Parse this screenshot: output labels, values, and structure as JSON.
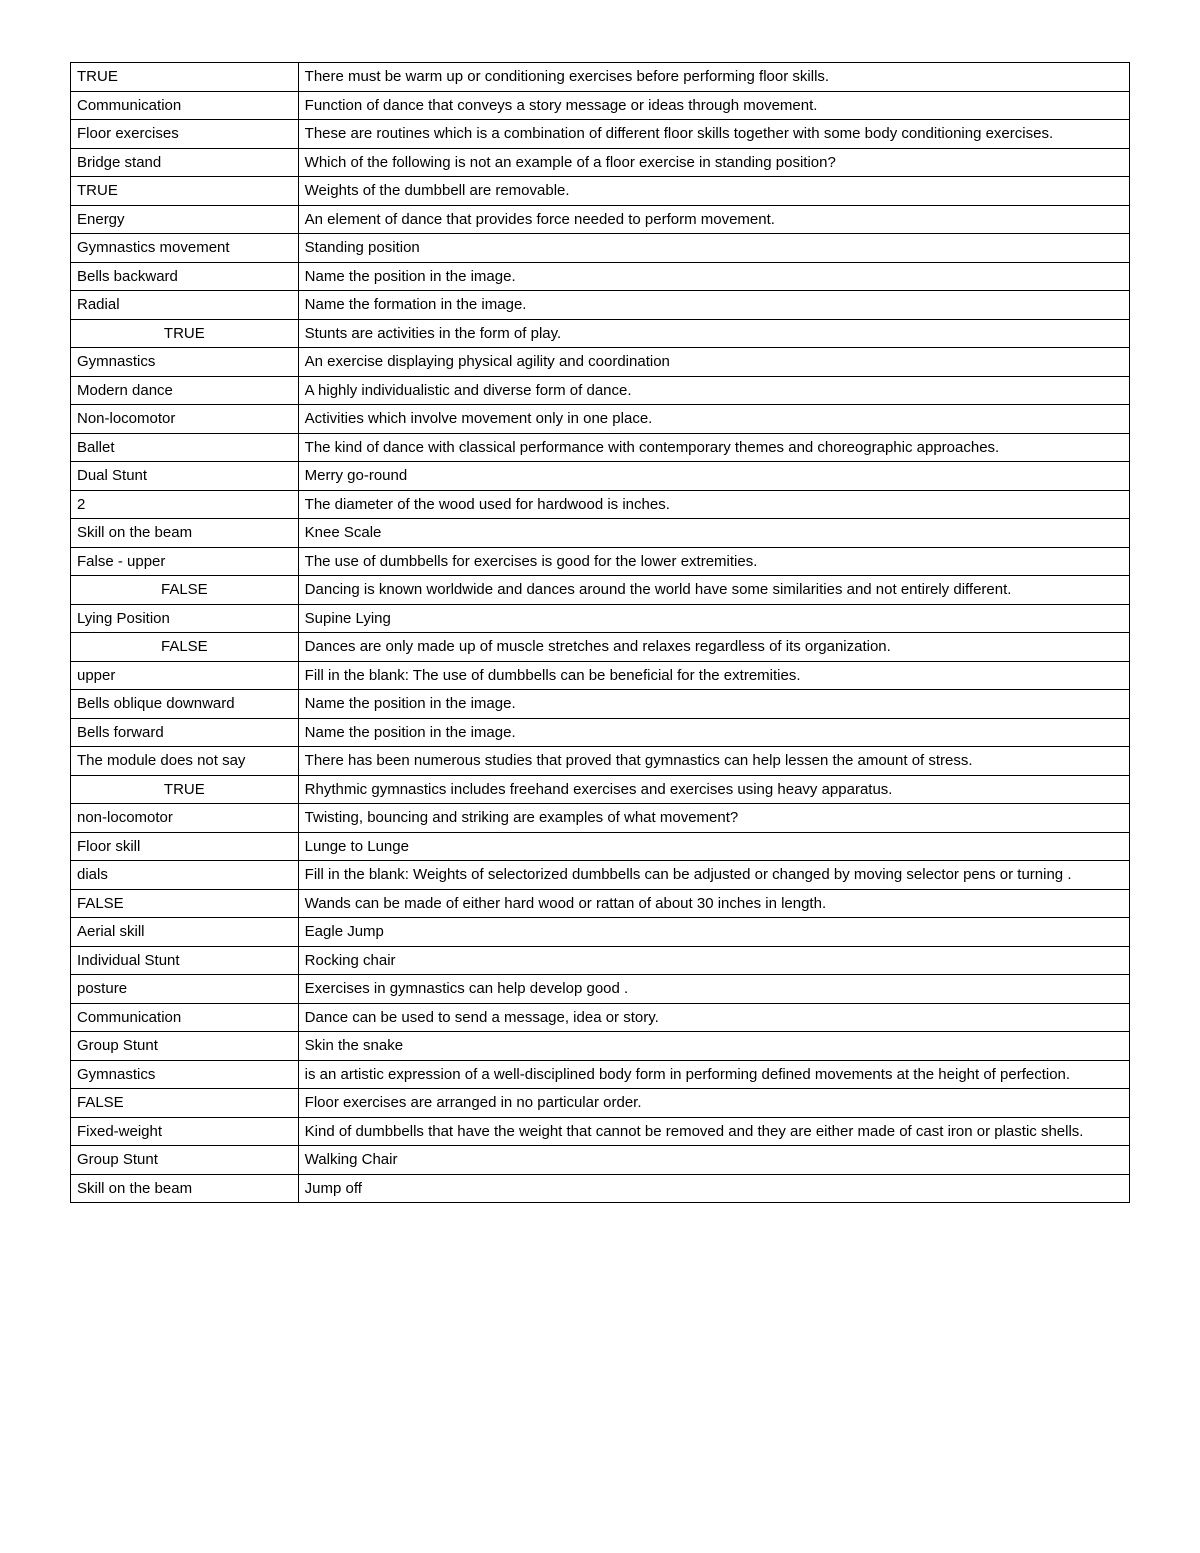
{
  "table": {
    "column_widths": [
      "21.5%",
      "78.5%"
    ],
    "border_color": "#000000",
    "background_color": "#ffffff",
    "font_size": 15,
    "rows": [
      {
        "left": "TRUE",
        "center": false,
        "right": "There must be warm up or conditioning exercises before performing floor skills."
      },
      {
        "left": "Communication",
        "center": false,
        "right": "Function of dance that conveys a story message or ideas through movement."
      },
      {
        "left": "Floor exercises",
        "center": false,
        "right": "These are routines which is a combination of different floor skills together with some body conditioning exercises."
      },
      {
        "left": "Bridge stand",
        "center": false,
        "right": "Which of the following is not an example of a floor exercise in standing position?"
      },
      {
        "left": "TRUE",
        "center": false,
        "right": "Weights of the dumbbell are removable."
      },
      {
        "left": "Energy",
        "center": false,
        "right": "An element of dance that provides force needed to perform movement."
      },
      {
        "left": "Gymnastics movement",
        "center": false,
        "right": "Standing position"
      },
      {
        "left": "Bells backward",
        "center": false,
        "right": "Name the position in the image."
      },
      {
        "left": "Radial",
        "center": false,
        "right": "Name the formation in the image."
      },
      {
        "left": "TRUE",
        "center": true,
        "right": "Stunts are activities in the form of play."
      },
      {
        "left": "Gymnastics",
        "center": false,
        "right": "An exercise displaying physical agility and coordination"
      },
      {
        "left": "Modern dance",
        "center": false,
        "right": "A highly individualistic and diverse form of dance."
      },
      {
        "left": "Non-locomotor",
        "center": false,
        "right": "Activities which involve movement only in one place."
      },
      {
        "left": "Ballet",
        "center": false,
        "right": "The kind of dance with classical performance with contemporary themes and choreographic approaches."
      },
      {
        "left": "Dual Stunt",
        "center": false,
        "right": "Merry go-round"
      },
      {
        "left": "2",
        "center": false,
        "right": "The diameter of the wood used for hardwood is inches."
      },
      {
        "left": "Skill on the beam",
        "center": false,
        "right": "Knee Scale"
      },
      {
        "left": "False - upper",
        "center": false,
        "right": "The use of dumbbells for exercises is good for the lower extremities."
      },
      {
        "left": "FALSE",
        "center": true,
        "right": "Dancing is known worldwide and dances around the world have some similarities and not entirely different."
      },
      {
        "left": "Lying Position",
        "center": false,
        "right": "Supine Lying"
      },
      {
        "left": "FALSE",
        "center": true,
        "right": "Dances are only made up of muscle stretches and relaxes regardless of its organization."
      },
      {
        "left": "upper",
        "center": false,
        "right": "Fill in the blank: The use of dumbbells can be beneficial for the extremities."
      },
      {
        "left": "Bells oblique downward",
        "center": false,
        "right": "Name the position in the image."
      },
      {
        "left": "Bells forward",
        "center": false,
        "right": "Name the position in the image."
      },
      {
        "left": "The module does not say",
        "center": false,
        "right": "There has been numerous studies that proved that gymnastics can help lessen the amount of stress."
      },
      {
        "left": "TRUE",
        "center": true,
        "right": "Rhythmic gymnastics includes freehand exercises and exercises using heavy apparatus."
      },
      {
        "left": "non-locomotor",
        "center": false,
        "right": "Twisting, bouncing and striking are examples of what movement?"
      },
      {
        "left": "Floor skill",
        "center": false,
        "right": "Lunge to Lunge"
      },
      {
        "left": "dials",
        "center": false,
        "right": "Fill in the blank: Weights of selectorized dumbbells can be adjusted or changed by moving selector pens or turning ."
      },
      {
        "left": "FALSE",
        "center": false,
        "right": "Wands can be made of either hard wood or rattan of about 30 inches in length."
      },
      {
        "left": "Aerial skill",
        "center": false,
        "right": "Eagle Jump"
      },
      {
        "left": "Individual Stunt",
        "center": false,
        "right": "Rocking chair"
      },
      {
        "left": "posture",
        "center": false,
        "right": "Exercises in gymnastics can help develop good ."
      },
      {
        "left": "Communication",
        "center": false,
        "right": "Dance can be used to send a message, idea or story."
      },
      {
        "left": "Group Stunt",
        "center": false,
        "right": "Skin the snake"
      },
      {
        "left": "Gymnastics",
        "center": false,
        "right": "is an artistic expression of a well-disciplined body form in performing defined movements at the height of perfection."
      },
      {
        "left": "FALSE",
        "center": false,
        "right": "Floor exercises are arranged in no particular order."
      },
      {
        "left": "Fixed-weight",
        "center": false,
        "right": "Kind of dumbbells that have the weight that cannot be removed and they are either made of cast iron or plastic shells."
      },
      {
        "left": "Group Stunt",
        "center": false,
        "right": "Walking Chair"
      },
      {
        "left": "Skill on the beam",
        "center": false,
        "right": "Jump off"
      }
    ]
  }
}
